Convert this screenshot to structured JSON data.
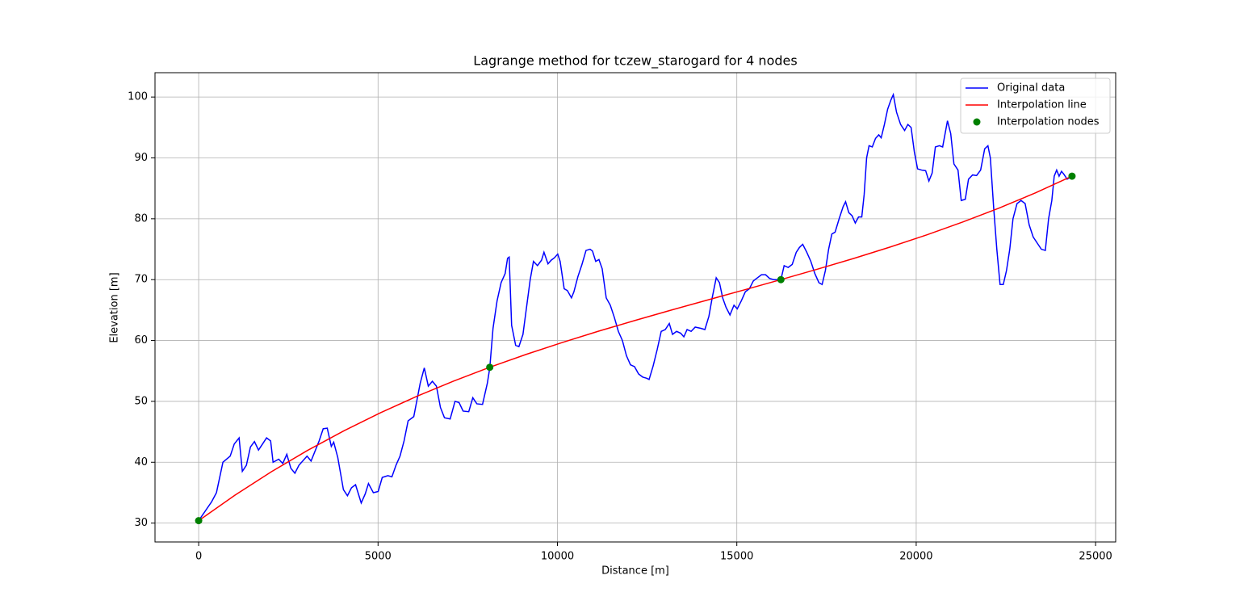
{
  "chart_data": {
    "type": "line",
    "title": "Lagrange method for tczew_starogard for 4 nodes",
    "x_label": "Distance [m]",
    "y_label": "Elevation [m]",
    "xlim": [
      -1217,
      25560
    ],
    "ylim": [
      26.9,
      104.0
    ],
    "xticks": [
      0,
      5000,
      10000,
      15000,
      20000,
      25000
    ],
    "yticks": [
      30,
      40,
      50,
      60,
      70,
      80,
      90,
      100
    ],
    "grid": true,
    "legend": "upper right",
    "series": [
      {
        "name": "Original data",
        "type": "line",
        "color": "#0000ff",
        "x": [
          0,
          361,
          496,
          676,
          879,
          992,
          1127,
          1217,
          1330,
          1443,
          1555,
          1668,
          1781,
          1893,
          2006,
          2074,
          2231,
          2344,
          2457,
          2570,
          2682,
          2795,
          3020,
          3133,
          3358,
          3471,
          3584,
          3697,
          3764,
          3877,
          4035,
          4147,
          4260,
          4373,
          4531,
          4643,
          4733,
          4869,
          5004,
          5117,
          5274,
          5387,
          5500,
          5612,
          5725,
          5838,
          5996,
          6176,
          6289,
          6401,
          6514,
          6627,
          6739,
          6852,
          7010,
          7145,
          7258,
          7371,
          7528,
          7641,
          7754,
          7912,
          8047,
          8114,
          8205,
          8317,
          8430,
          8543,
          8610,
          8655,
          8723,
          8836,
          8926,
          9039,
          9151,
          9241,
          9332,
          9444,
          9557,
          9625,
          9737,
          9827,
          9918,
          10008,
          10075,
          10188,
          10278,
          10391,
          10459,
          10571,
          10684,
          10797,
          10909,
          10977,
          11067,
          11157,
          11247,
          11360,
          11473,
          11586,
          11698,
          11811,
          11924,
          12036,
          12149,
          12262,
          12374,
          12487,
          12555,
          12667,
          12780,
          12893,
          13006,
          13118,
          13208,
          13321,
          13434,
          13524,
          13614,
          13727,
          13840,
          13997,
          14110,
          14223,
          14313,
          14426,
          14516,
          14606,
          14696,
          14809,
          14921,
          15012,
          15124,
          15237,
          15350,
          15462,
          15575,
          15688,
          15801,
          15913,
          16026,
          16139,
          16229,
          16319,
          16432,
          16544,
          16657,
          16747,
          16837,
          16950,
          17063,
          17175,
          17288,
          17378,
          17469,
          17559,
          17649,
          17739,
          17852,
          17964,
          18032,
          18122,
          18212,
          18302,
          18393,
          18483,
          18550,
          18618,
          18686,
          18776,
          18866,
          18956,
          19024,
          19114,
          19204,
          19294,
          19362,
          19452,
          19565,
          19677,
          19768,
          19858,
          19948,
          20038,
          20151,
          20263,
          20354,
          20444,
          20534,
          20647,
          20737,
          20872,
          20962,
          21052,
          21165,
          21255,
          21368,
          21458,
          21571,
          21683,
          21796,
          21909,
          21999,
          22067,
          22157,
          22247,
          22337,
          22427,
          22517,
          22608,
          22698,
          22810,
          22923,
          23036,
          23149,
          23261,
          23374,
          23487,
          23599,
          23690,
          23780,
          23847,
          23915,
          23983,
          24050,
          24118,
          24208,
          24343
        ],
        "values": [
          30.4,
          33.5,
          35,
          40,
          41,
          43,
          44,
          38.5,
          39.5,
          42.5,
          43.4,
          42,
          43,
          44,
          43.5,
          40,
          40.5,
          39.8,
          41.3,
          39,
          38.2,
          39.5,
          41,
          40.2,
          43.5,
          45.5,
          45.6,
          42.6,
          43.3,
          40.8,
          35.5,
          34.5,
          35.8,
          36.3,
          33.3,
          34.8,
          36.5,
          35,
          35.2,
          37.5,
          37.8,
          37.6,
          39.5,
          41,
          43.5,
          46.8,
          47.5,
          53,
          55.5,
          52.5,
          53.3,
          52.5,
          49,
          47.3,
          47.1,
          50,
          49.8,
          48.4,
          48.3,
          50.6,
          49.6,
          49.5,
          53,
          55.5,
          62,
          66.5,
          69.5,
          71,
          73.5,
          73.7,
          62.5,
          59.2,
          59,
          61,
          66,
          70,
          73,
          72.3,
          73.2,
          74.5,
          72.6,
          73.2,
          73.6,
          74.2,
          73,
          68.5,
          68.2,
          67,
          68,
          70.5,
          72.5,
          74.8,
          75,
          74.7,
          73,
          73.3,
          71.8,
          67,
          65.8,
          63.8,
          61.5,
          60,
          57.5,
          56,
          55.7,
          54.5,
          54,
          53.8,
          53.6,
          55.8,
          58.5,
          61.5,
          61.8,
          62.8,
          61,
          61.5,
          61.2,
          60.6,
          61.8,
          61.5,
          62.2,
          62,
          61.8,
          64,
          67,
          70.3,
          69.5,
          67,
          65.5,
          64.2,
          65.8,
          65.2,
          66.5,
          68,
          68.5,
          69.8,
          70.3,
          70.8,
          70.8,
          70.2,
          70,
          70,
          70,
          72.3,
          72,
          72.5,
          74.5,
          75.3,
          75.8,
          74.5,
          73,
          71,
          69.5,
          69.2,
          71.5,
          75,
          77.5,
          77.8,
          80,
          82,
          82.8,
          81,
          80.5,
          79.3,
          80.3,
          80.3,
          84,
          90,
          92,
          91.8,
          93.2,
          93.8,
          93.3,
          95.5,
          98,
          99.5,
          100.4,
          97.5,
          95.5,
          94.5,
          95.5,
          95,
          91,
          88.2,
          88,
          87.9,
          86.2,
          87.5,
          91.8,
          92,
          91.8,
          96.1,
          94,
          89,
          88,
          83,
          83.2,
          86.5,
          87.2,
          87.1,
          88,
          91.5,
          92,
          90,
          82,
          75,
          69.2,
          69.2,
          71.5,
          75,
          80,
          82.5,
          83,
          82.5,
          79,
          77,
          76,
          75,
          74.8,
          80,
          83,
          87,
          88,
          87,
          87.8,
          87.3,
          86.5,
          87
        ]
      },
      {
        "name": "Interpolation line",
        "type": "line",
        "color": "#ff0000",
        "x": [
          0,
          1014,
          2029,
          3043,
          4057,
          5072,
          6086,
          7100,
          8114,
          9129,
          10143,
          11157,
          12172,
          13186,
          14200,
          15215,
          16229,
          17243,
          18257,
          19272,
          20286,
          21300,
          22315,
          23329,
          24343
        ],
        "values": [
          30.4,
          34.6,
          38.45,
          41.97,
          45.19,
          48.14,
          50.84,
          53.32,
          55.6,
          57.72,
          59.69,
          61.55,
          63.31,
          65.02,
          66.68,
          68.33,
          70.0,
          71.71,
          73.48,
          75.35,
          77.34,
          79.47,
          81.77,
          84.27,
          87.0
        ]
      },
      {
        "name": "Interpolation nodes",
        "type": "scatter",
        "color": "#008000",
        "x": [
          0,
          8114,
          16229,
          24343
        ],
        "values": [
          30.4,
          55.6,
          70.0,
          87.0
        ]
      }
    ]
  }
}
